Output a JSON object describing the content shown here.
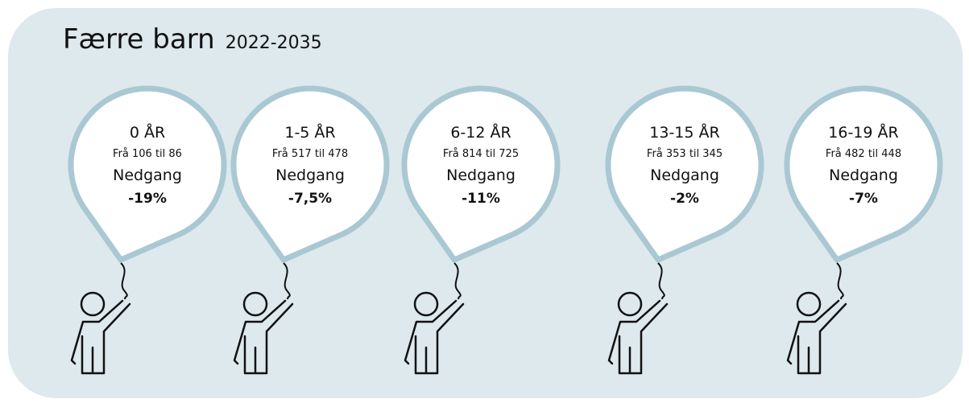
{
  "header": {
    "title": "Færre barn",
    "subtitle": "2022-2035"
  },
  "balloons": [
    {
      "label": "0 ÅR",
      "range": "Frå 106 til 86",
      "change": "Nedgang",
      "percent": "-19%"
    },
    {
      "label": "1-5 ÅR",
      "range": "Frå 517 til 478",
      "change": "Nedgang",
      "percent": "-7,5%"
    },
    {
      "label": "6-12 ÅR",
      "range": "Frå 814 til 725",
      "change": "Nedgang",
      "percent": "-11%"
    },
    {
      "label": "13-15 ÅR",
      "range": "Frå 353 til 345",
      "change": "Nedgang",
      "percent": "-2%"
    },
    {
      "label": "16-19 ÅR",
      "range": "Frå 482 til 448",
      "change": "Nedgang",
      "percent": "-7%"
    }
  ]
}
